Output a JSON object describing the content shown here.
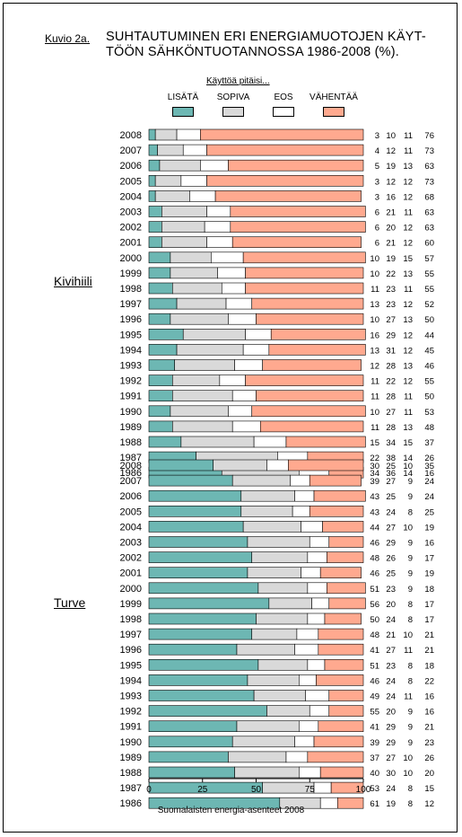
{
  "figure_label": "Kuvio 2a.",
  "title_line1": "SUHTAUTUMINEN ERI ENERGIAMUOTOJEN KÄYT-",
  "title_line2": "TÖÖN SÄHKÖNTUOTANNOSSA 1986-2008 (%).",
  "legend_title": "Käyttöä pitäisi...",
  "source": "Suomalaisten energia-asenteet 2008",
  "colors": {
    "lisata": "#6DB7B3",
    "sopiva": "#D9D9D9",
    "eos": "#FFFFFF",
    "vahentaa": "#FFA98F"
  },
  "chart_data": {
    "type": "bar",
    "orientation": "horizontal",
    "stacked": true,
    "legend_title": "Käyttöä pitäisi...",
    "series_names": [
      "LISÄTÄ",
      "SOPIVA",
      "EOS",
      "VÄHENTÄÄ"
    ],
    "xlim": [
      0,
      100
    ],
    "xticks": [
      0,
      25,
      50,
      75,
      100
    ],
    "groups": [
      {
        "name": "Kivihiili",
        "years": [
          "2008",
          "2007",
          "2006",
          "2005",
          "2004",
          "2003",
          "2002",
          "2001",
          "2000",
          "1999",
          "1998",
          "1997",
          "1996",
          "1995",
          "1994",
          "1993",
          "1992",
          "1991",
          "1990",
          "1989",
          "1988",
          "1987",
          "1986"
        ],
        "values": [
          [
            3,
            10,
            11,
            76
          ],
          [
            4,
            12,
            11,
            73
          ],
          [
            5,
            19,
            13,
            63
          ],
          [
            3,
            12,
            12,
            73
          ],
          [
            3,
            16,
            12,
            68
          ],
          [
            6,
            21,
            11,
            63
          ],
          [
            6,
            20,
            12,
            63
          ],
          [
            6,
            21,
            12,
            60
          ],
          [
            10,
            19,
            15,
            57
          ],
          [
            10,
            22,
            13,
            55
          ],
          [
            11,
            23,
            11,
            55
          ],
          [
            13,
            23,
            12,
            52
          ],
          [
            10,
            27,
            13,
            50
          ],
          [
            16,
            29,
            12,
            44
          ],
          [
            13,
            31,
            12,
            45
          ],
          [
            12,
            28,
            13,
            46
          ],
          [
            11,
            22,
            12,
            55
          ],
          [
            11,
            28,
            11,
            50
          ],
          [
            10,
            27,
            11,
            53
          ],
          [
            11,
            28,
            13,
            48
          ],
          [
            15,
            34,
            15,
            37
          ],
          [
            22,
            38,
            14,
            26
          ],
          [
            34,
            36,
            14,
            16
          ]
        ]
      },
      {
        "name": "Turve",
        "years": [
          "2008",
          "2007",
          "2006",
          "2005",
          "2004",
          "2003",
          "2002",
          "2001",
          "2000",
          "1999",
          "1998",
          "1997",
          "1996",
          "1995",
          "1994",
          "1993",
          "1992",
          "1991",
          "1990",
          "1989",
          "1988",
          "1987",
          "1986"
        ],
        "values": [
          [
            30,
            25,
            10,
            35
          ],
          [
            39,
            27,
            9,
            24
          ],
          [
            43,
            25,
            9,
            24
          ],
          [
            43,
            24,
            8,
            25
          ],
          [
            44,
            27,
            10,
            19
          ],
          [
            46,
            29,
            9,
            16
          ],
          [
            48,
            26,
            9,
            17
          ],
          [
            46,
            25,
            9,
            19
          ],
          [
            51,
            23,
            9,
            18
          ],
          [
            56,
            20,
            8,
            17
          ],
          [
            50,
            24,
            8,
            17
          ],
          [
            48,
            21,
            10,
            21
          ],
          [
            41,
            27,
            11,
            21
          ],
          [
            51,
            23,
            8,
            18
          ],
          [
            46,
            24,
            8,
            22
          ],
          [
            49,
            24,
            11,
            16
          ],
          [
            55,
            20,
            9,
            16
          ],
          [
            41,
            29,
            9,
            21
          ],
          [
            39,
            29,
            9,
            23
          ],
          [
            37,
            27,
            10,
            26
          ],
          [
            40,
            30,
            10,
            20
          ],
          [
            53,
            24,
            8,
            15
          ],
          [
            61,
            19,
            8,
            12
          ]
        ]
      }
    ]
  }
}
